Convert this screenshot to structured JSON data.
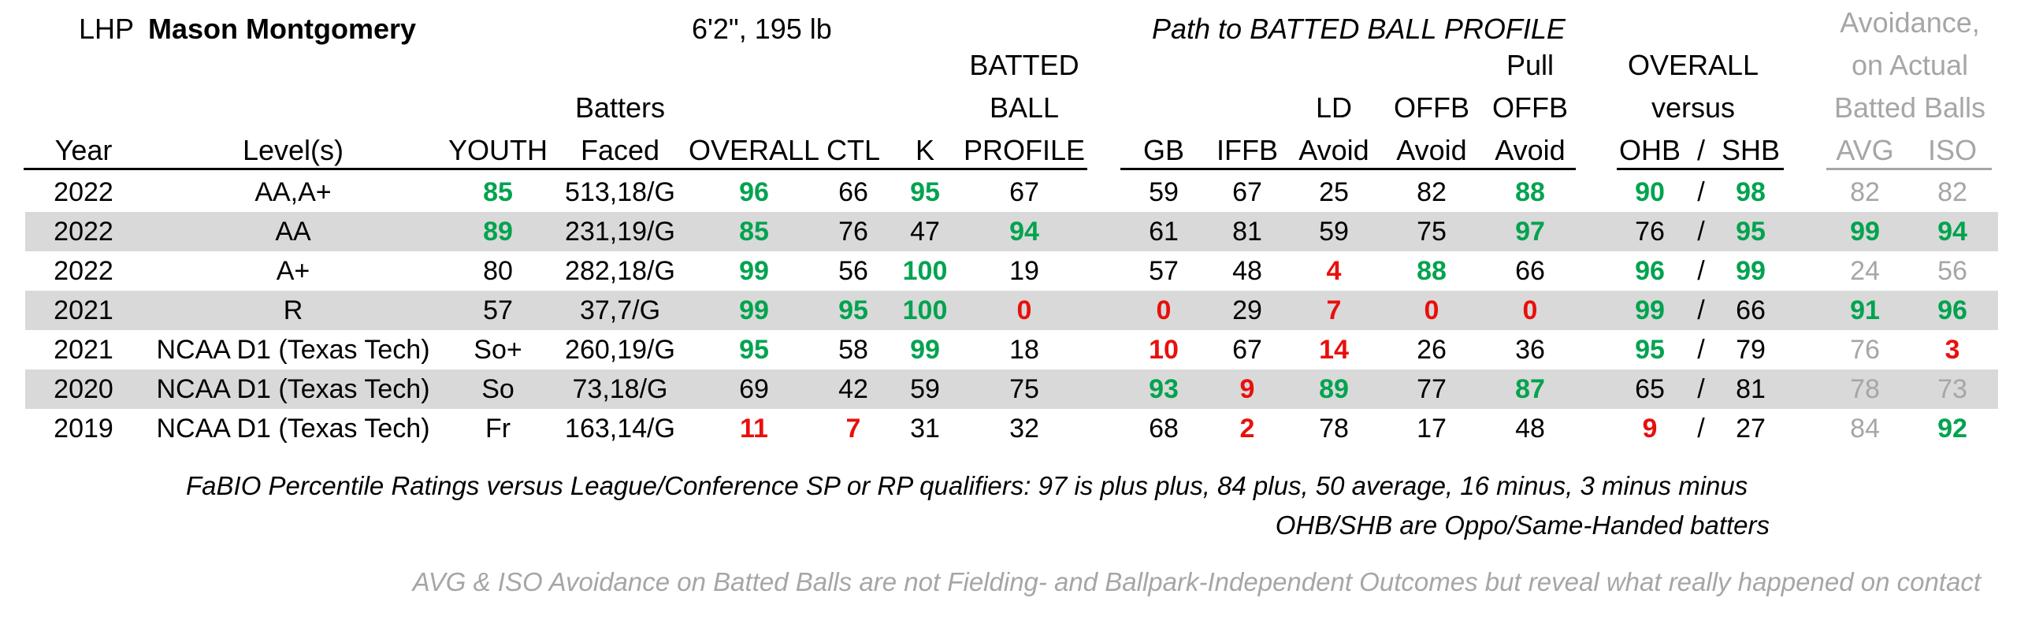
{
  "player": {
    "hand": "LHP",
    "name": "Mason Montgomery",
    "size": "6'2\", 195 lb"
  },
  "section_title": "Path to BATTED BALL PROFILE",
  "avoidance_title": [
    "Avoidance,",
    "on Actual",
    "Batted Balls"
  ],
  "headers": {
    "year": "Year",
    "level": "Level(s)",
    "youth": "YOUTH",
    "bf": [
      "Batters",
      "Faced"
    ],
    "overall": "OVERALL",
    "ctl": "CTL",
    "k": "K",
    "bbp": [
      "BATTED",
      "BALL",
      "PROFILE"
    ],
    "gb": "GB",
    "iffb": "IFFB",
    "ld": [
      "LD",
      "Avoid"
    ],
    "offb": [
      "OFFB",
      "Avoid"
    ],
    "pull": [
      "Pull",
      "OFFB",
      "Avoid"
    ],
    "vs": [
      "OVERALL",
      "versus"
    ],
    "ohb": "OHB",
    "sep": "/",
    "shb": "SHB",
    "avg": "AVG",
    "iso": "ISO"
  },
  "rows": [
    {
      "year": "2022",
      "level": "AA,A+",
      "youth": "85",
      "bf": "513,18/G",
      "overall": "96",
      "ctl": "66",
      "k": "95",
      "bbp": "67",
      "gb": "59",
      "iffb": "67",
      "ld": "25",
      "offb": "82",
      "pull": "88",
      "ohb": "90",
      "shb": "98",
      "avg": "82",
      "iso": "82"
    },
    {
      "year": "2022",
      "level": "AA",
      "youth": "89",
      "bf": "231,19/G",
      "overall": "85",
      "ctl": "76",
      "k": "47",
      "bbp": "94",
      "gb": "61",
      "iffb": "81",
      "ld": "59",
      "offb": "75",
      "pull": "97",
      "ohb": "76",
      "shb": "95",
      "avg": "99",
      "iso": "94"
    },
    {
      "year": "2022",
      "level": "A+",
      "youth": "80",
      "bf": "282,18/G",
      "overall": "99",
      "ctl": "56",
      "k": "100",
      "bbp": "19",
      "gb": "57",
      "iffb": "48",
      "ld": "4",
      "offb": "88",
      "pull": "66",
      "ohb": "96",
      "shb": "99",
      "avg": "24",
      "iso": "56"
    },
    {
      "year": "2021",
      "level": "R",
      "youth": "57",
      "bf": "37,7/G",
      "overall": "99",
      "ctl": "95",
      "k": "100",
      "bbp": "0",
      "gb": "0",
      "iffb": "29",
      "ld": "7",
      "offb": "0",
      "pull": "0",
      "ohb": "99",
      "shb": "66",
      "avg": "91",
      "iso": "96"
    },
    {
      "year": "2021",
      "level": "NCAA D1 (Texas Tech)",
      "youth": "So+",
      "bf": "260,19/G",
      "overall": "95",
      "ctl": "58",
      "k": "99",
      "bbp": "18",
      "gb": "10",
      "iffb": "67",
      "ld": "14",
      "offb": "26",
      "pull": "36",
      "ohb": "95",
      "shb": "79",
      "avg": "76",
      "iso": "3"
    },
    {
      "year": "2020",
      "level": "NCAA D1 (Texas Tech)",
      "youth": "So",
      "bf": "73,18/G",
      "overall": "69",
      "ctl": "42",
      "k": "59",
      "bbp": "75",
      "gb": "93",
      "iffb": "9",
      "ld": "89",
      "offb": "77",
      "pull": "87",
      "ohb": "65",
      "shb": "81",
      "avg": "78",
      "iso": "73"
    },
    {
      "year": "2019",
      "level": "NCAA D1 (Texas Tech)",
      "youth": "Fr",
      "bf": "163,14/G",
      "overall": "11",
      "ctl": "7",
      "k": "31",
      "bbp": "32",
      "gb": "68",
      "iffb": "2",
      "ld": "78",
      "offb": "17",
      "pull": "48",
      "ohb": "9",
      "shb": "27",
      "avg": "84",
      "iso": "92"
    }
  ],
  "colors": {
    "good": "#00a34f",
    "bad": "#e8100c",
    "muted": "#a6a6a6",
    "band": "#d9d9d9"
  },
  "notes": {
    "scale": "FaBIO Percentile Ratings versus League/Conference SP or RP qualifiers: 97 is plus plus, 84 plus, 50 average, 16 minus, 3 minus minus",
    "handed": "OHB/SHB are Oppo/Same-Handed batters",
    "avoidance": "AVG & ISO Avoidance on Batted Balls are not Fielding- and Ballpark-Independent Outcomes but reveal what really happened on contact"
  }
}
